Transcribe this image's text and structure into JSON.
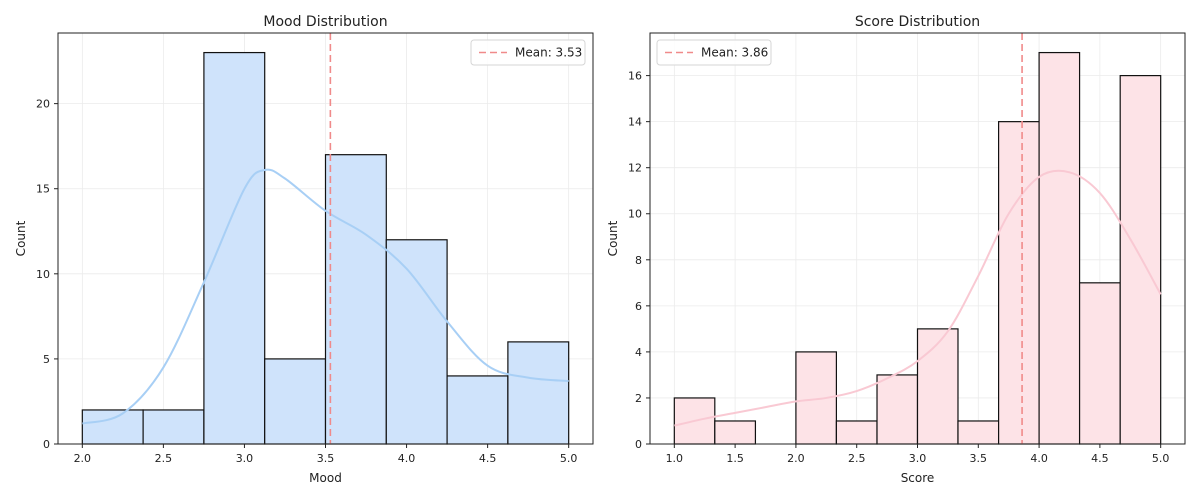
{
  "chart_data": [
    {
      "type": "bar",
      "title": "Mood Distribution",
      "xlabel": "Mood",
      "ylabel": "Count",
      "xlim": [
        1.85,
        5.15
      ],
      "ylim": [
        0,
        24.15
      ],
      "xticks": [
        "2.0",
        "2.5",
        "3.0",
        "3.5",
        "4.0",
        "4.5",
        "5.0"
      ],
      "yticks": [
        "0",
        "5",
        "10",
        "15",
        "20"
      ],
      "grid": true,
      "legend_position": "top-right",
      "bin_edges": [
        2.0,
        2.375,
        2.75,
        3.125,
        3.5,
        3.875,
        4.25,
        4.625,
        5.0
      ],
      "values": [
        2,
        2,
        23,
        5,
        17,
        12,
        4,
        6
      ],
      "bar_color": "#cfe3fb",
      "kde_color": "#a8cff5",
      "kde_x": [
        2.0,
        2.25,
        2.5,
        2.75,
        3.0,
        3.125,
        3.25,
        3.5,
        3.75,
        4.0,
        4.25,
        4.5,
        4.75,
        5.0
      ],
      "kde_y": [
        1.2,
        1.8,
        4.5,
        9.5,
        15.0,
        16.1,
        15.6,
        13.7,
        12.3,
        10.3,
        7.2,
        4.6,
        3.9,
        3.7
      ],
      "mean": 3.53,
      "mean_label": "Mean: 3.53",
      "mean_color": "#f08a8a"
    },
    {
      "type": "bar",
      "title": "Score Distribution",
      "xlabel": "Score",
      "ylabel": "Count",
      "xlim": [
        0.8,
        5.2
      ],
      "ylim": [
        0,
        17.85
      ],
      "xticks": [
        "1.0",
        "1.5",
        "2.0",
        "2.5",
        "3.0",
        "3.5",
        "4.0",
        "4.5",
        "5.0"
      ],
      "yticks": [
        "0",
        "2",
        "4",
        "6",
        "8",
        "10",
        "12",
        "14",
        "16"
      ],
      "grid": true,
      "legend_position": "top-left",
      "bin_edges": [
        1.0,
        1.333,
        1.667,
        2.0,
        2.333,
        2.667,
        3.0,
        3.333,
        3.667,
        4.0,
        4.333,
        4.667,
        5.0
      ],
      "values": [
        2,
        1,
        0,
        4,
        1,
        3,
        5,
        1,
        14,
        17,
        7,
        16
      ],
      "bar_color": "#fde3e7",
      "kde_color": "#f9c9d3",
      "kde_x": [
        1.0,
        1.25,
        1.5,
        1.75,
        2.0,
        2.25,
        2.5,
        2.75,
        3.0,
        3.25,
        3.5,
        3.75,
        4.0,
        4.25,
        4.5,
        4.75,
        5.0
      ],
      "kde_y": [
        0.8,
        1.1,
        1.35,
        1.6,
        1.85,
        2.0,
        2.3,
        2.85,
        3.6,
        4.9,
        7.3,
        10.0,
        11.6,
        11.8,
        10.9,
        8.9,
        6.5
      ],
      "mean": 3.86,
      "mean_label": "Mean: 3.86",
      "mean_color": "#f08a8a"
    }
  ]
}
